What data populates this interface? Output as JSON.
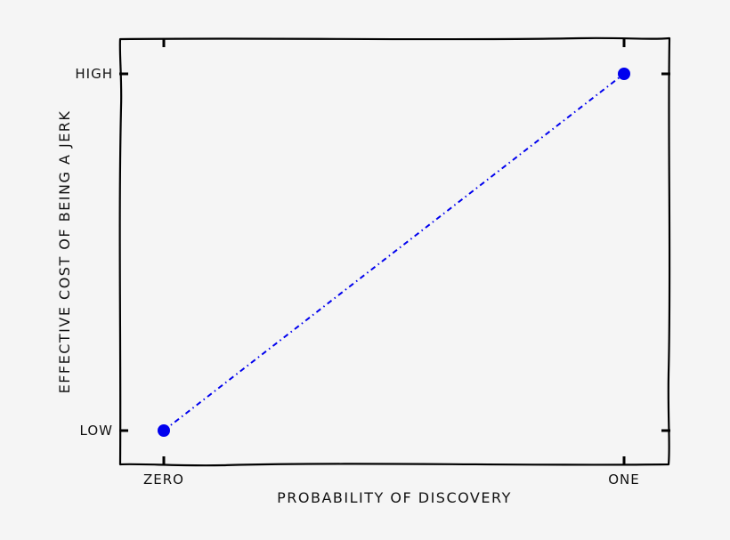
{
  "chart_data": {
    "type": "line",
    "title": "",
    "xlabel": "PROBABILITY OF DISCOVERY",
    "ylabel": "EFFECTIVE COST OF BEING A JERK",
    "x_ticks": [
      "ZERO",
      "ONE"
    ],
    "y_ticks": [
      "LOW",
      "HIGH"
    ],
    "xlim": [
      0,
      1
    ],
    "ylim": [
      0,
      1
    ],
    "grid": false,
    "line_style": "dash-dot",
    "series": [
      {
        "color": "#0000ee",
        "x": [
          0,
          1
        ],
        "y": [
          0,
          1
        ]
      }
    ]
  }
}
